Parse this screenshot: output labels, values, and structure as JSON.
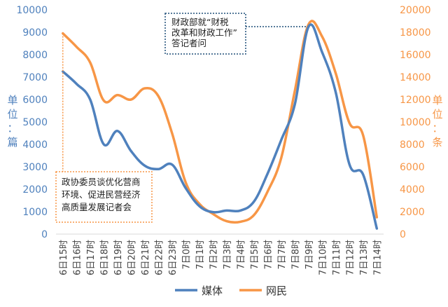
{
  "chart_data": {
    "type": "line",
    "x": [
      "6日15时",
      "6日16时",
      "6日17时",
      "6日18时",
      "6日19时",
      "6日20时",
      "6日21时",
      "6日22时",
      "6日23时",
      "7日0时",
      "7日1时",
      "7日2时",
      "7日3时",
      "7日4时",
      "7日5时",
      "7日6时",
      "7日7时",
      "7日8时",
      "7日9时",
      "7日10时",
      "7日11时",
      "7日12时",
      "7日13时",
      "7日14时"
    ],
    "series": [
      {
        "name": "媒体",
        "axis": "left",
        "color": "#4F81BD",
        "values": [
          7250,
          6700,
          6000,
          4000,
          4600,
          3700,
          3050,
          2900,
          3100,
          2050,
          1250,
          980,
          1050,
          1050,
          1450,
          2700,
          4200,
          5800,
          9250,
          8100,
          6300,
          3100,
          2650,
          250
        ]
      },
      {
        "name": "网民",
        "axis": "right",
        "color": "#F79646",
        "values": [
          17900,
          16700,
          15300,
          11900,
          12400,
          12000,
          13000,
          12300,
          9000,
          4600,
          2700,
          1800,
          1150,
          1100,
          1700,
          3800,
          6800,
          12800,
          18700,
          17600,
          14300,
          9900,
          8800,
          1500
        ]
      }
    ],
    "ylabel_left": "单位：篇",
    "ylabel_right": "单位：条",
    "ylim_left": [
      0,
      10000
    ],
    "ylim_right": [
      0,
      20000
    ],
    "yticks_left": [
      0,
      1000,
      2000,
      3000,
      4000,
      5000,
      6000,
      7000,
      8000,
      9000,
      10000
    ],
    "yticks_right": [
      0,
      2000,
      4000,
      6000,
      8000,
      10000,
      12000,
      14000,
      16000,
      18000,
      20000
    ],
    "grid": false,
    "legend_position": "bottom",
    "annotations": [
      {
        "text": [
          "政协委员谈优化营商",
          "环境、促进民营经济",
          "高质量发展记者会"
        ],
        "anchor_index": 0,
        "series": 1,
        "border_color": "#F79646"
      },
      {
        "text": [
          "财政部就“财税",
          "改革和财政工作”",
          "答记者问"
        ],
        "anchor_index": 18,
        "series": 0,
        "border_color": "#1F4E79"
      }
    ]
  }
}
